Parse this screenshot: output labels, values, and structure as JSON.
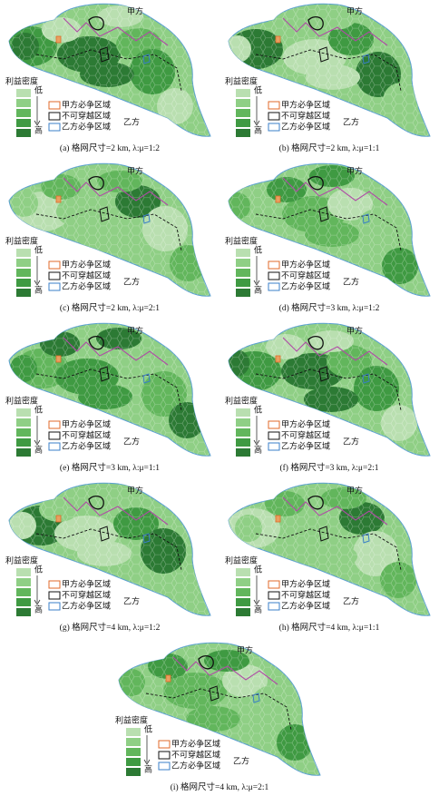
{
  "labels": {
    "party_a": "甲方",
    "party_b": "乙方",
    "density": "利益密度",
    "low": "低",
    "high": "高"
  },
  "legend": [
    "甲方必争区域",
    "不可穿越区域",
    "乙方必争区域"
  ],
  "panels": [
    {
      "caption": "(a) 格网尺寸=2 km, λ:μ=1:2"
    },
    {
      "caption": "(b) 格网尺寸=2 km, λ:μ=1:1"
    },
    {
      "caption": "(c) 格网尺寸=2 km, λ:μ=2:1"
    },
    {
      "caption": "(d) 格网尺寸=3 km, λ:μ=1:2"
    },
    {
      "caption": "(e) 格网尺寸=3 km, λ:μ=1:1"
    },
    {
      "caption": "(f) 格网尺寸=3 km, λ:μ=2:1"
    },
    {
      "caption": "(g) 格网尺寸=4 km, λ:μ=1:2"
    },
    {
      "caption": "(h) 格网尺寸=4 km, λ:μ=1:1"
    },
    {
      "caption": "(i) 格网尺寸=4 km, λ:μ=2:1"
    }
  ]
}
